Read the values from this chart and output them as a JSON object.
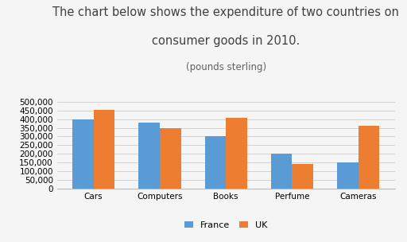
{
  "title_line1": "The chart below shows the expenditure of two countries on",
  "title_line2": "consumer goods in 2010.",
  "subtitle": "(pounds sterling)",
  "categories": [
    "Cars",
    "Computers",
    "Books",
    "Perfume",
    "Cameras"
  ],
  "france_values": [
    400000,
    380000,
    300000,
    200000,
    150000
  ],
  "uk_values": [
    455000,
    350000,
    408000,
    140000,
    360000
  ],
  "france_color": "#5B9BD5",
  "uk_color": "#ED7D31",
  "ylim": [
    0,
    500000
  ],
  "yticks": [
    0,
    50000,
    100000,
    150000,
    200000,
    250000,
    300000,
    350000,
    400000,
    450000,
    500000
  ],
  "legend_labels": [
    "France",
    "UK"
  ],
  "background_color": "#f5f5f5",
  "plot_bg_color": "#f5f5f5",
  "grid_color": "#cccccc",
  "title_fontsize": 10.5,
  "subtitle_fontsize": 8.5,
  "tick_fontsize": 7.5,
  "legend_fontsize": 8,
  "bar_width": 0.32,
  "title_color": "#404040",
  "subtitle_color": "#606060"
}
